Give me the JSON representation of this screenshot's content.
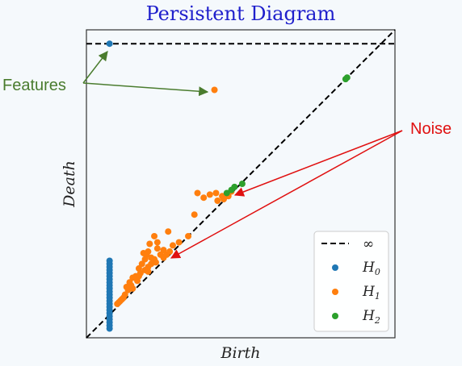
{
  "chart_data": {
    "type": "scatter",
    "title": "Persistent Diagram",
    "xlabel": "Birth",
    "ylabel": "Death",
    "xlim": [
      0,
      1
    ],
    "ylim": [
      0,
      1
    ],
    "infinity_level": 0.955,
    "legend": {
      "position": "lower-right",
      "entries": [
        {
          "label": "∞",
          "kind": "dashed-line",
          "color": "#000000"
        },
        {
          "label": "H",
          "sub": "0",
          "kind": "marker",
          "color": "#1f77b4"
        },
        {
          "label": "H",
          "sub": "1",
          "kind": "marker",
          "color": "#ff7f0e"
        },
        {
          "label": "H",
          "sub": "2",
          "kind": "marker",
          "color": "#2ca02c"
        }
      ]
    },
    "series": [
      {
        "name": "H0",
        "color": "#1f77b4",
        "points": [
          [
            0.075,
            0.955
          ],
          [
            0.075,
            0.25
          ],
          [
            0.075,
            0.24
          ],
          [
            0.075,
            0.23
          ],
          [
            0.075,
            0.22
          ],
          [
            0.075,
            0.21
          ],
          [
            0.075,
            0.2
          ],
          [
            0.075,
            0.19
          ],
          [
            0.075,
            0.18
          ],
          [
            0.075,
            0.17
          ],
          [
            0.075,
            0.16
          ],
          [
            0.075,
            0.15
          ],
          [
            0.075,
            0.14
          ],
          [
            0.075,
            0.13
          ],
          [
            0.075,
            0.12
          ],
          [
            0.075,
            0.11
          ],
          [
            0.075,
            0.1
          ],
          [
            0.075,
            0.09
          ],
          [
            0.075,
            0.08
          ],
          [
            0.075,
            0.07
          ],
          [
            0.075,
            0.06
          ],
          [
            0.075,
            0.05
          ],
          [
            0.075,
            0.04
          ],
          [
            0.075,
            0.03
          ]
        ]
      },
      {
        "name": "H1",
        "color": "#ff7f0e",
        "points": [
          [
            0.415,
            0.805
          ],
          [
            0.36,
            0.47
          ],
          [
            0.38,
            0.455
          ],
          [
            0.4,
            0.465
          ],
          [
            0.42,
            0.47
          ],
          [
            0.44,
            0.46
          ],
          [
            0.445,
            0.45
          ],
          [
            0.46,
            0.46
          ],
          [
            0.47,
            0.475
          ],
          [
            0.425,
            0.445
          ],
          [
            0.35,
            0.4
          ],
          [
            0.265,
            0.345
          ],
          [
            0.3,
            0.31
          ],
          [
            0.33,
            0.33
          ],
          [
            0.22,
            0.33
          ],
          [
            0.23,
            0.31
          ],
          [
            0.205,
            0.305
          ],
          [
            0.2,
            0.28
          ],
          [
            0.19,
            0.255
          ],
          [
            0.21,
            0.26
          ],
          [
            0.22,
            0.255
          ],
          [
            0.24,
            0.27
          ],
          [
            0.25,
            0.26
          ],
          [
            0.26,
            0.27
          ],
          [
            0.27,
            0.28
          ],
          [
            0.18,
            0.24
          ],
          [
            0.17,
            0.225
          ],
          [
            0.175,
            0.21
          ],
          [
            0.19,
            0.22
          ],
          [
            0.2,
            0.23
          ],
          [
            0.21,
            0.24
          ],
          [
            0.15,
            0.195
          ],
          [
            0.16,
            0.2
          ],
          [
            0.165,
            0.185
          ],
          [
            0.17,
            0.2
          ],
          [
            0.14,
            0.18
          ],
          [
            0.145,
            0.17
          ],
          [
            0.15,
            0.16
          ],
          [
            0.135,
            0.155
          ],
          [
            0.125,
            0.14
          ],
          [
            0.12,
            0.13
          ],
          [
            0.115,
            0.125
          ],
          [
            0.11,
            0.12
          ],
          [
            0.105,
            0.115
          ],
          [
            0.1,
            0.11
          ],
          [
            0.13,
            0.165
          ],
          [
            0.185,
            0.275
          ],
          [
            0.23,
            0.29
          ],
          [
            0.25,
            0.285
          ],
          [
            0.28,
            0.3
          ],
          [
            0.195,
            0.27
          ],
          [
            0.2,
            0.215
          ],
          [
            0.225,
            0.245
          ]
        ]
      },
      {
        "name": "H2",
        "color": "#2ca02c",
        "points": [
          [
            0.845,
            0.845
          ],
          [
            0.84,
            0.84
          ],
          [
            0.48,
            0.49
          ],
          [
            0.505,
            0.5
          ],
          [
            0.47,
            0.48
          ],
          [
            0.455,
            0.47
          ]
        ]
      }
    ],
    "annotations": [
      {
        "text": "Features",
        "color": "#4a7c2e"
      },
      {
        "text": "Noise",
        "color": "#e01010"
      }
    ]
  }
}
